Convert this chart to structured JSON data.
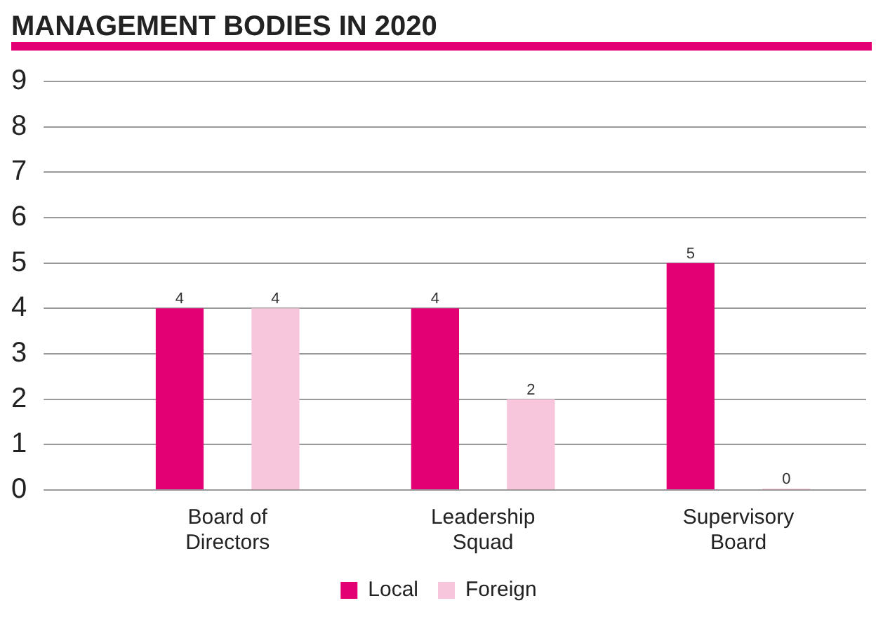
{
  "chart_data": {
    "type": "bar",
    "title": "MANAGEMENT BODIES IN 2020",
    "categories": [
      "Board of Directors",
      "Leadership Squad",
      "Supervisory Board"
    ],
    "series": [
      {
        "name": "Local",
        "color": "#e20074",
        "values": [
          4,
          4,
          5
        ]
      },
      {
        "name": "Foreign",
        "color": "#f7c6dd",
        "values": [
          4,
          2,
          0
        ]
      }
    ],
    "ylim": [
      0,
      9
    ],
    "yticks": [
      0,
      1,
      2,
      3,
      4,
      5,
      6,
      7,
      8,
      9
    ],
    "grid": "y",
    "legend": "bottom",
    "data_labels": true
  }
}
